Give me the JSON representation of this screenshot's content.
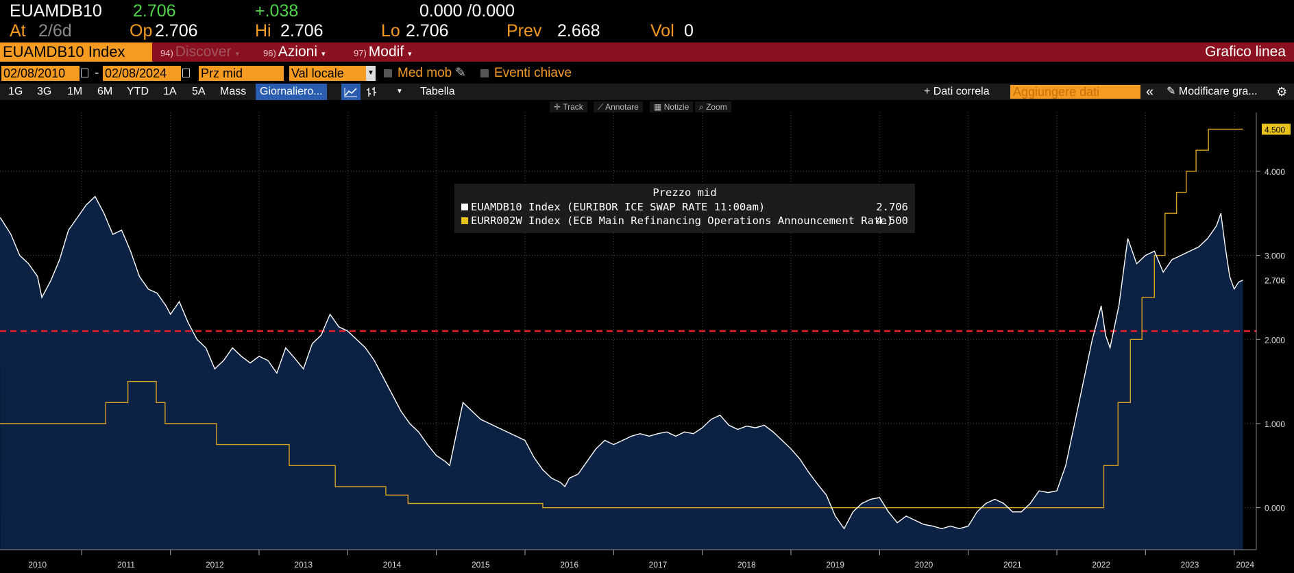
{
  "quote": {
    "ticker": "EUAMDB10",
    "last": "2.706",
    "change": "+.038",
    "bid_ask": "0.000 /0.000",
    "at_label": "At",
    "at_value": "2/6d",
    "open_label": "Op",
    "open_value": "2.706",
    "high_label": "Hi",
    "high_value": "2.706",
    "low_label": "Lo",
    "low_value": "2.706",
    "prev_label": "Prev",
    "prev_value": "2.668",
    "vol_label": "Vol",
    "vol_value": "0"
  },
  "toolbar": {
    "security": "EUAMDB10 Index",
    "menus": [
      {
        "num": "94)",
        "label": "Discover"
      },
      {
        "num": "96)",
        "label": "Azioni"
      },
      {
        "num": "97)",
        "label": "Modif"
      }
    ],
    "chart_type": "Grafico linea"
  },
  "range": {
    "start_date": "02/08/2010",
    "end_date": "02/08/2024",
    "separator": "-",
    "field": "Prz mid",
    "currency": "Val locale",
    "moving_avg_label": "Med mob",
    "key_events_label": "Eventi chiave"
  },
  "periods": [
    "1G",
    "3G",
    "1M",
    "6M",
    "YTD",
    "1A",
    "5A",
    "Mass"
  ],
  "frequency": "Giornaliero...",
  "table_label": "Tabella",
  "right_tools": {
    "correl": "+ Dati correla",
    "add_data_placeholder": "Aggiungere dati",
    "collapse": "«",
    "modify": "Modificare gra..."
  },
  "mini_toolbar": [
    "Track",
    "Annotare",
    "Notizie",
    "Zoom"
  ],
  "legend": {
    "title": "Prezzo mid",
    "items": [
      {
        "name": "EUAMDB10 Index (EURIBOR ICE SWAP RATE 11:00am)",
        "value": "2.706",
        "color": "#ffffff"
      },
      {
        "name": "EURR002W Index (ECB Main Refinancing Operations Announcement Rate)",
        "value": "4.500",
        "color": "#e8c21c"
      }
    ]
  },
  "colors": {
    "accent": "#f59b21",
    "toolbar_red": "#8b1120",
    "area_fill": "#0b2244",
    "ecb_line": "#d9a320",
    "ref_line": "#e8202a"
  },
  "chart_data": {
    "type": "line",
    "x_unit": "year",
    "xlim": [
      2010.0,
      2024.25
    ],
    "ylim": [
      -0.5,
      4.7
    ],
    "x_ticks": [
      "2010",
      "2011",
      "2012",
      "2013",
      "2014",
      "2015",
      "2016",
      "2017",
      "2018",
      "2019",
      "2020",
      "2021",
      "2022",
      "2023",
      "2024"
    ],
    "y_ticks": [
      "0.000",
      "1.000",
      "2.000",
      "3.000",
      "4.000"
    ],
    "y_tick_values": [
      0,
      1,
      2,
      3,
      4
    ],
    "last_labels": {
      "swap": "2.706",
      "ecb": "4.500"
    },
    "reference_line": {
      "value": 2.1,
      "style": "dashed"
    },
    "grid": true,
    "series": [
      {
        "name": "EUAMDB10 Index (EURIBOR ICE SWAP RATE 11:00am)",
        "style": "area",
        "points": [
          [
            2010.08,
            3.45
          ],
          [
            2010.2,
            3.25
          ],
          [
            2010.3,
            3.0
          ],
          [
            2010.4,
            2.9
          ],
          [
            2010.5,
            2.75
          ],
          [
            2010.55,
            2.5
          ],
          [
            2010.65,
            2.7
          ],
          [
            2010.75,
            2.95
          ],
          [
            2010.85,
            3.3
          ],
          [
            2010.95,
            3.45
          ],
          [
            2011.05,
            3.6
          ],
          [
            2011.15,
            3.7
          ],
          [
            2011.25,
            3.5
          ],
          [
            2011.35,
            3.25
          ],
          [
            2011.45,
            3.3
          ],
          [
            2011.55,
            3.05
          ],
          [
            2011.65,
            2.75
          ],
          [
            2011.75,
            2.6
          ],
          [
            2011.85,
            2.55
          ],
          [
            2011.95,
            2.4
          ],
          [
            2012.0,
            2.3
          ],
          [
            2012.1,
            2.45
          ],
          [
            2012.2,
            2.2
          ],
          [
            2012.3,
            2.0
          ],
          [
            2012.4,
            1.9
          ],
          [
            2012.5,
            1.65
          ],
          [
            2012.6,
            1.75
          ],
          [
            2012.7,
            1.9
          ],
          [
            2012.8,
            1.8
          ],
          [
            2012.9,
            1.72
          ],
          [
            2013.0,
            1.8
          ],
          [
            2013.1,
            1.75
          ],
          [
            2013.2,
            1.6
          ],
          [
            2013.3,
            1.9
          ],
          [
            2013.4,
            1.78
          ],
          [
            2013.5,
            1.65
          ],
          [
            2013.6,
            1.95
          ],
          [
            2013.7,
            2.05
          ],
          [
            2013.8,
            2.3
          ],
          [
            2013.9,
            2.15
          ],
          [
            2014.0,
            2.1
          ],
          [
            2014.1,
            2.0
          ],
          [
            2014.2,
            1.9
          ],
          [
            2014.3,
            1.75
          ],
          [
            2014.4,
            1.55
          ],
          [
            2014.5,
            1.35
          ],
          [
            2014.6,
            1.15
          ],
          [
            2014.7,
            1.0
          ],
          [
            2014.8,
            0.9
          ],
          [
            2014.9,
            0.75
          ],
          [
            2015.0,
            0.62
          ],
          [
            2015.1,
            0.55
          ],
          [
            2015.15,
            0.5
          ],
          [
            2015.22,
            0.85
          ],
          [
            2015.3,
            1.25
          ],
          [
            2015.4,
            1.15
          ],
          [
            2015.5,
            1.05
          ],
          [
            2015.6,
            1.0
          ],
          [
            2015.7,
            0.95
          ],
          [
            2015.8,
            0.9
          ],
          [
            2015.9,
            0.85
          ],
          [
            2016.0,
            0.8
          ],
          [
            2016.1,
            0.6
          ],
          [
            2016.2,
            0.45
          ],
          [
            2016.3,
            0.35
          ],
          [
            2016.4,
            0.3
          ],
          [
            2016.45,
            0.25
          ],
          [
            2016.5,
            0.35
          ],
          [
            2016.6,
            0.4
          ],
          [
            2016.7,
            0.55
          ],
          [
            2016.8,
            0.7
          ],
          [
            2016.9,
            0.8
          ],
          [
            2017.0,
            0.75
          ],
          [
            2017.1,
            0.8
          ],
          [
            2017.2,
            0.85
          ],
          [
            2017.3,
            0.88
          ],
          [
            2017.4,
            0.85
          ],
          [
            2017.5,
            0.88
          ],
          [
            2017.6,
            0.9
          ],
          [
            2017.7,
            0.85
          ],
          [
            2017.8,
            0.9
          ],
          [
            2017.9,
            0.88
          ],
          [
            2018.0,
            0.95
          ],
          [
            2018.1,
            1.05
          ],
          [
            2018.2,
            1.1
          ],
          [
            2018.3,
            0.98
          ],
          [
            2018.4,
            0.93
          ],
          [
            2018.5,
            0.97
          ],
          [
            2018.6,
            0.95
          ],
          [
            2018.7,
            0.98
          ],
          [
            2018.8,
            0.9
          ],
          [
            2018.9,
            0.8
          ],
          [
            2019.0,
            0.7
          ],
          [
            2019.1,
            0.58
          ],
          [
            2019.2,
            0.42
          ],
          [
            2019.3,
            0.28
          ],
          [
            2019.4,
            0.15
          ],
          [
            2019.5,
            -0.1
          ],
          [
            2019.6,
            -0.25
          ],
          [
            2019.7,
            -0.05
          ],
          [
            2019.8,
            0.05
          ],
          [
            2019.9,
            0.1
          ],
          [
            2020.0,
            0.12
          ],
          [
            2020.1,
            -0.05
          ],
          [
            2020.2,
            -0.18
          ],
          [
            2020.3,
            -0.1
          ],
          [
            2020.4,
            -0.15
          ],
          [
            2020.5,
            -0.2
          ],
          [
            2020.6,
            -0.22
          ],
          [
            2020.7,
            -0.25
          ],
          [
            2020.8,
            -0.22
          ],
          [
            2020.9,
            -0.25
          ],
          [
            2021.0,
            -0.22
          ],
          [
            2021.1,
            -0.05
          ],
          [
            2021.2,
            0.05
          ],
          [
            2021.3,
            0.1
          ],
          [
            2021.4,
            0.05
          ],
          [
            2021.5,
            -0.05
          ],
          [
            2021.6,
            -0.05
          ],
          [
            2021.7,
            0.05
          ],
          [
            2021.8,
            0.2
          ],
          [
            2021.9,
            0.18
          ],
          [
            2022.0,
            0.2
          ],
          [
            2022.1,
            0.5
          ],
          [
            2022.2,
            1.0
          ],
          [
            2022.3,
            1.5
          ],
          [
            2022.4,
            2.0
          ],
          [
            2022.5,
            2.4
          ],
          [
            2022.55,
            2.05
          ],
          [
            2022.6,
            1.9
          ],
          [
            2022.7,
            2.4
          ],
          [
            2022.8,
            3.2
          ],
          [
            2022.9,
            2.9
          ],
          [
            2023.0,
            3.0
          ],
          [
            2023.1,
            3.05
          ],
          [
            2023.2,
            2.8
          ],
          [
            2023.3,
            2.95
          ],
          [
            2023.4,
            3.0
          ],
          [
            2023.5,
            3.05
          ],
          [
            2023.6,
            3.1
          ],
          [
            2023.7,
            3.2
          ],
          [
            2023.8,
            3.35
          ],
          [
            2023.85,
            3.5
          ],
          [
            2023.9,
            3.1
          ],
          [
            2023.95,
            2.75
          ],
          [
            2024.0,
            2.6
          ],
          [
            2024.05,
            2.68
          ],
          [
            2024.1,
            2.706
          ]
        ]
      },
      {
        "name": "EURR002W Index (ECB Main Refinancing Operations Announcement Rate)",
        "style": "step",
        "points": [
          [
            2010.0,
            1.0
          ],
          [
            2011.27,
            1.0
          ],
          [
            2011.27,
            1.25
          ],
          [
            2011.52,
            1.25
          ],
          [
            2011.52,
            1.5
          ],
          [
            2011.84,
            1.5
          ],
          [
            2011.84,
            1.25
          ],
          [
            2011.94,
            1.25
          ],
          [
            2011.94,
            1.0
          ],
          [
            2012.52,
            1.0
          ],
          [
            2012.52,
            0.75
          ],
          [
            2013.34,
            0.75
          ],
          [
            2013.34,
            0.5
          ],
          [
            2013.86,
            0.5
          ],
          [
            2013.86,
            0.25
          ],
          [
            2014.43,
            0.25
          ],
          [
            2014.43,
            0.15
          ],
          [
            2014.68,
            0.15
          ],
          [
            2014.68,
            0.05
          ],
          [
            2016.2,
            0.05
          ],
          [
            2016.2,
            0.0
          ],
          [
            2022.53,
            0.0
          ],
          [
            2022.53,
            0.5
          ],
          [
            2022.69,
            0.5
          ],
          [
            2022.69,
            1.25
          ],
          [
            2022.83,
            1.25
          ],
          [
            2022.83,
            2.0
          ],
          [
            2022.96,
            2.0
          ],
          [
            2022.96,
            2.5
          ],
          [
            2023.1,
            2.5
          ],
          [
            2023.1,
            3.0
          ],
          [
            2023.22,
            3.0
          ],
          [
            2023.22,
            3.5
          ],
          [
            2023.35,
            3.5
          ],
          [
            2023.35,
            3.75
          ],
          [
            2023.46,
            3.75
          ],
          [
            2023.46,
            4.0
          ],
          [
            2023.57,
            4.0
          ],
          [
            2023.57,
            4.25
          ],
          [
            2023.71,
            4.25
          ],
          [
            2023.71,
            4.5
          ],
          [
            2024.1,
            4.5
          ]
        ]
      }
    ]
  }
}
